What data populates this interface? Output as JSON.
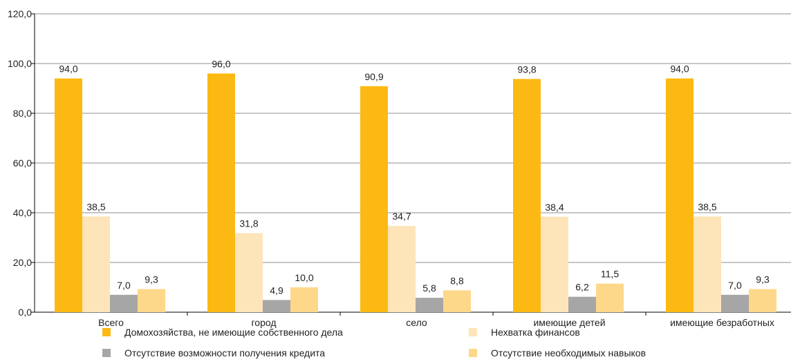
{
  "chart_data": {
    "type": "bar",
    "categories": [
      "Всего",
      "город",
      "село",
      "имеющие детей",
      "имеющие безработных"
    ],
    "series": [
      {
        "name": "Домохозяйства, не имеющие собственного дела",
        "color": "#FDB913",
        "values": [
          94.0,
          96.0,
          90.9,
          93.8,
          94.0
        ]
      },
      {
        "name": "Нехватка финансов",
        "color": "#FDE5B9",
        "values": [
          38.5,
          31.8,
          34.7,
          38.4,
          38.5
        ]
      },
      {
        "name": "Отсутствие возможности получения кредита",
        "color": "#A6A6A6",
        "values": [
          7.0,
          4.9,
          5.8,
          6.2,
          7.0
        ]
      },
      {
        "name": "Отсутствие необходимых навыков",
        "color": "#FDD88A",
        "values": [
          9.3,
          10.0,
          8.8,
          11.5,
          9.3
        ]
      }
    ],
    "value_labels": [
      [
        "94,0",
        "96,0",
        "90,9",
        "93,8",
        "94,0"
      ],
      [
        "38,5",
        "31,8",
        "34,7",
        "38,4",
        "38,5"
      ],
      [
        "7,0",
        "4,9",
        "5,8",
        "6,2",
        "7,0"
      ],
      [
        "9,3",
        "10,0",
        "8,8",
        "11,5",
        "9,3"
      ]
    ],
    "yticks": [
      0,
      20,
      40,
      60,
      80,
      100,
      120
    ],
    "ytick_labels": [
      "0,0",
      "20,0",
      "40,0",
      "60,0",
      "80,0",
      "100,0",
      "120,0"
    ],
    "ylim": [
      0,
      120
    ],
    "grid": true,
    "legend_position": "bottom",
    "title": "",
    "xlabel": "",
    "ylabel": ""
  }
}
